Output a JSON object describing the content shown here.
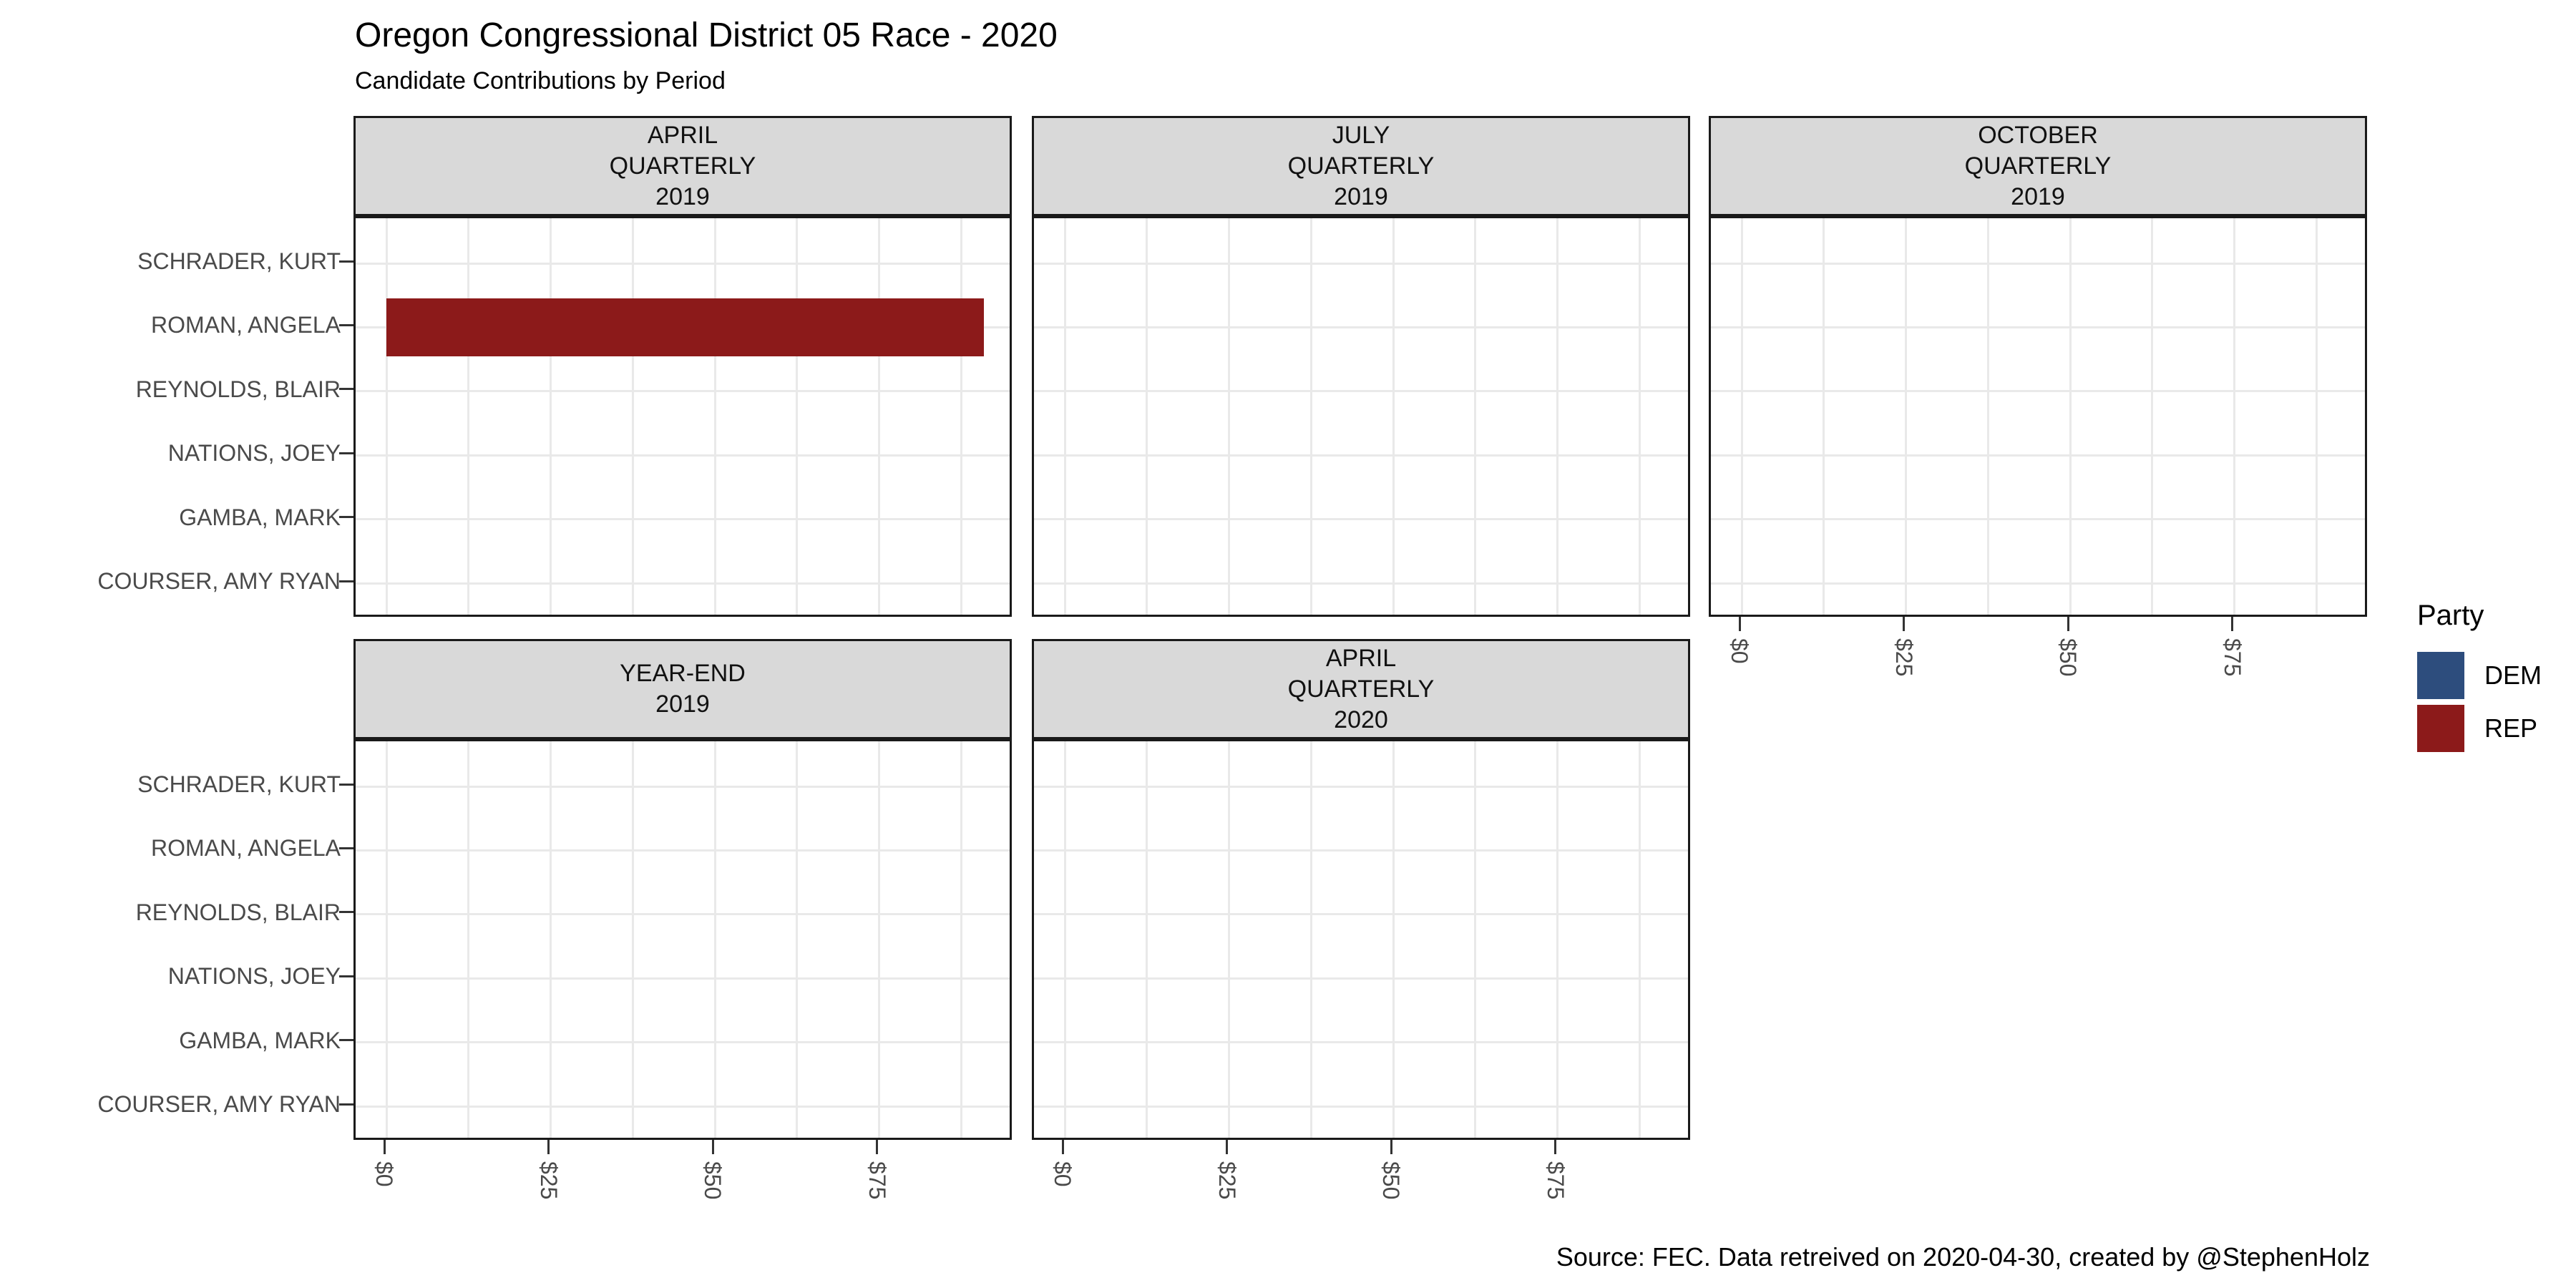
{
  "title": "Oregon Congressional District 05 Race - 2020",
  "subtitle": "Candidate Contributions by Period",
  "caption": "Source: FEC. Data retreived on 2020-04-30, created by @StephenHolz",
  "legend": {
    "title": "Party",
    "items": [
      {
        "label": "DEM",
        "color": "#2D4D7D"
      },
      {
        "label": "REP",
        "color": "#8C1A1A"
      }
    ]
  },
  "chart_data": {
    "type": "bar",
    "orientation": "horizontal",
    "title": "Oregon Congressional District 05 Race - 2020",
    "subtitle": "Candidate Contributions by Period",
    "facets": [
      {
        "period": "APRIL QUARTERLY 2019",
        "label_lines": [
          "APRIL",
          "QUARTERLY",
          "2019"
        ]
      },
      {
        "period": "JULY QUARTERLY 2019",
        "label_lines": [
          "JULY",
          "QUARTERLY",
          "2019"
        ]
      },
      {
        "period": "OCTOBER QUARTERLY 2019",
        "label_lines": [
          "OCTOBER",
          "QUARTERLY",
          "2019"
        ]
      },
      {
        "period": "YEAR-END 2019",
        "label_lines": [
          "YEAR-END",
          "2019"
        ]
      },
      {
        "period": "APRIL QUARTERLY 2020",
        "label_lines": [
          "APRIL",
          "QUARTERLY",
          "2020"
        ]
      }
    ],
    "categories": [
      "SCHRADER, KURT",
      "ROMAN, ANGELA",
      "REYNOLDS, BLAIR",
      "NATIONS, JOEY",
      "GAMBA, MARK",
      "COURSER, AMY RYAN"
    ],
    "x_tick_labels": [
      "$0",
      "$25",
      "$50",
      "$75"
    ],
    "x_tick_values": [
      0,
      25,
      50,
      75
    ],
    "x_minor_values": [
      12.5,
      37.5,
      62.5,
      87.5
    ],
    "xlim": [
      0,
      95.5
    ],
    "grid": true,
    "legend_position": "right",
    "bars": [
      {
        "facet": "APRIL QUARTERLY 2019",
        "category": "ROMAN, ANGELA",
        "party": "REP",
        "value": 91
      }
    ]
  }
}
